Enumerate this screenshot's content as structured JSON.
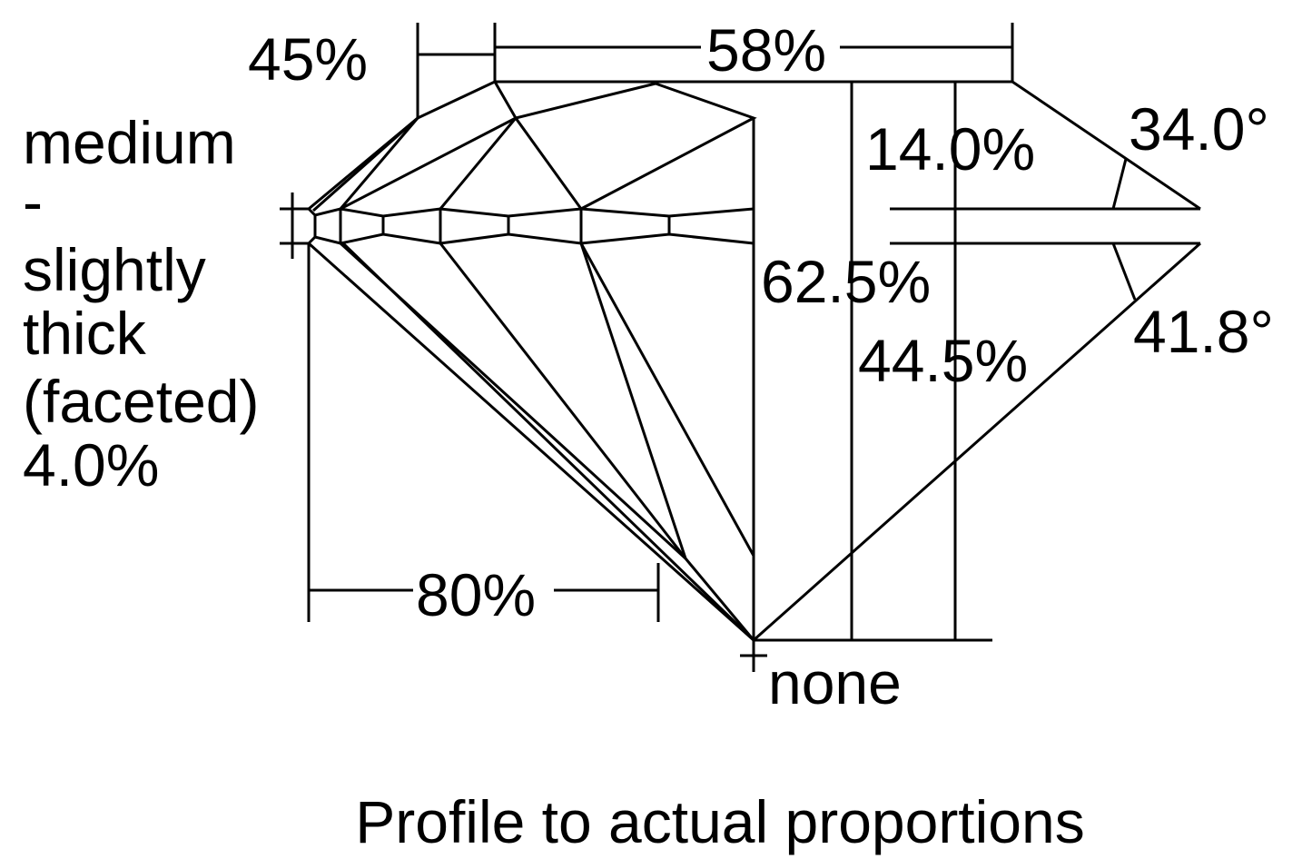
{
  "labels": {
    "crown_angle_width": "45%",
    "table": "58%",
    "girdle": [
      "medium",
      "-",
      "slightly",
      "thick",
      "(faceted)",
      "4.0%"
    ],
    "crown_height": "14.0%",
    "crown_angle": "34.0°",
    "total_depth": "62.5%",
    "pavilion_depth": "44.5%",
    "pavilion_angle": "41.8°",
    "lower_half_length": "80%",
    "culet": "none"
  },
  "caption": "Profile to actual proportions",
  "colors": {
    "line": "#000000",
    "background": "#ffffff"
  }
}
